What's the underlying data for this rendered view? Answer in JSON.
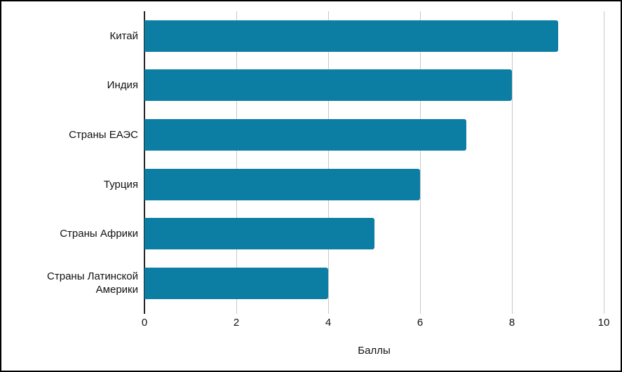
{
  "chart": {
    "bar_color": "#0d7ea3",
    "grid_color": "#c8c8c8",
    "axis_color": "#262626",
    "background": "#ffffff",
    "frame_border": "#000000"
  },
  "chart_data": {
    "type": "bar",
    "orientation": "horizontal",
    "title": "",
    "categories": [
      "Китай",
      "Индия",
      "Страны ЕАЭС",
      "Турция",
      "Страны Африки",
      "Страны Латинской Америки"
    ],
    "values": [
      9,
      8,
      7,
      6,
      5,
      4
    ],
    "xlabel": "Баллы",
    "ylabel": "",
    "xlim": [
      0,
      10
    ],
    "xticks": [
      0,
      2,
      4,
      6,
      8,
      10
    ],
    "grid": true,
    "legend": false
  }
}
